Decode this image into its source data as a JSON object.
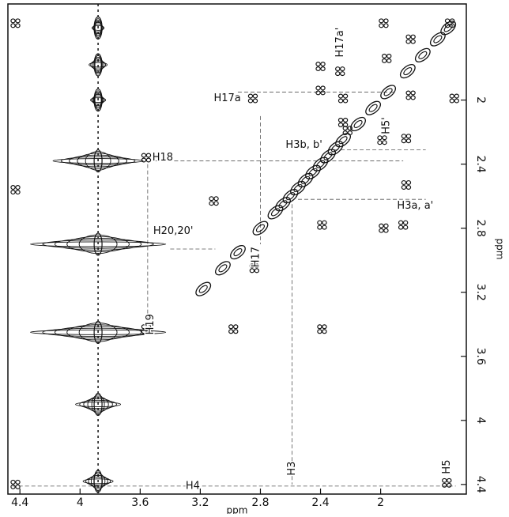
{
  "chart_data": {
    "type": "nmr-2d",
    "x_label": "ppm",
    "y_label": "ppm",
    "xlim": [
      4.48,
      1.43
    ],
    "ylim": [
      1.4,
      4.46
    ],
    "xticks": [
      4.4,
      4.0,
      3.6,
      3.2,
      2.8,
      2.4,
      2.0
    ],
    "yticks": [
      2.0,
      2.4,
      2.8,
      3.2,
      3.6,
      4.0,
      4.4
    ],
    "color": "#111111",
    "diagonal": {
      "x": [
        1.55,
        1.62,
        1.72,
        1.82,
        1.95,
        2.05,
        2.15,
        2.25,
        2.3,
        2.35,
        2.4,
        2.45,
        2.5,
        2.55,
        2.6,
        2.65,
        2.7,
        2.8,
        2.95,
        3.05,
        3.18
      ],
      "y": [
        1.55,
        1.62,
        1.72,
        1.82,
        1.95,
        2.05,
        2.15,
        2.25,
        2.3,
        2.35,
        2.4,
        2.45,
        2.5,
        2.55,
        2.6,
        2.65,
        2.7,
        2.8,
        2.95,
        3.05,
        3.18
      ]
    },
    "cross_peaks": {
      "x": [
        4.43,
        1.54,
        1.98,
        1.96,
        1.8,
        1.8,
        1.51,
        2.27,
        2.25,
        2.25,
        2.4,
        2.4,
        2.85,
        3.56,
        3.56,
        4.43,
        3.11,
        2.98,
        2.84,
        2.39,
        2.39,
        1.98,
        1.85,
        1.83,
        2.22,
        1.83,
        4.43,
        1.56,
        1.99
      ],
      "y": [
        1.52,
        1.52,
        1.52,
        1.74,
        1.62,
        1.97,
        1.99,
        1.82,
        1.99,
        2.14,
        1.79,
        1.94,
        1.99,
        2.36,
        3.43,
        2.56,
        2.63,
        3.43,
        3.05,
        3.43,
        2.78,
        2.8,
        2.78,
        2.24,
        2.19,
        2.53,
        4.4,
        4.39,
        2.25
      ]
    },
    "streak": {
      "x": 3.88,
      "y": [
        1.55,
        1.78,
        2.0,
        2.38,
        2.9,
        3.45,
        3.9,
        4.38
      ],
      "halfwidth": [
        0.04,
        0.06,
        0.05,
        0.3,
        0.45,
        0.45,
        0.15,
        0.1
      ]
    },
    "guides": [
      {
        "x": [
          2.95,
          1.9
        ],
        "y": [
          1.95,
          1.95
        ]
      },
      {
        "x": [
          3.5,
          1.85
        ],
        "y": [
          2.38,
          2.38
        ]
      },
      {
        "x": [
          2.55,
          1.7
        ],
        "y": [
          2.62,
          2.62
        ]
      },
      {
        "x": [
          2.35,
          1.7
        ],
        "y": [
          2.31,
          2.31
        ]
      },
      {
        "x": [
          4.45,
          1.5
        ],
        "y": [
          4.41,
          4.41
        ]
      },
      {
        "x": [
          2.59,
          2.59
        ],
        "y": [
          2.65,
          4.4
        ]
      },
      {
        "x": [
          3.55,
          3.55
        ],
        "y": [
          2.4,
          3.45
        ]
      },
      {
        "x": [
          2.8,
          2.8
        ],
        "y": [
          2.1,
          2.9
        ]
      },
      {
        "x": [
          3.4,
          3.1
        ],
        "y": [
          2.93,
          2.93
        ]
      }
    ],
    "annotations": [
      {
        "text": "H17a",
        "x": 3.02,
        "y": 1.99
      },
      {
        "text": "H17a'",
        "x": 2.27,
        "y": 1.64,
        "rotate": true
      },
      {
        "text": "H5'",
        "x": 1.96,
        "y": 2.16,
        "rotate": true
      },
      {
        "text": "H3b, b'",
        "x": 2.51,
        "y": 2.28
      },
      {
        "text": "H18",
        "x": 3.45,
        "y": 2.36
      },
      {
        "text": "H3a, a'",
        "x": 1.77,
        "y": 2.66
      },
      {
        "text": "H20,20'",
        "x": 3.38,
        "y": 2.82
      },
      {
        "text": "H17",
        "x": 2.83,
        "y": 2.98,
        "rotate": true
      },
      {
        "text": "H19",
        "x": 3.53,
        "y": 3.4,
        "rotate": true
      },
      {
        "text": "H4",
        "x": 3.25,
        "y": 4.41
      },
      {
        "text": "H3",
        "x": 2.59,
        "y": 4.3,
        "rotate": true
      },
      {
        "text": "H5",
        "x": 1.56,
        "y": 4.29,
        "rotate": true
      }
    ]
  }
}
